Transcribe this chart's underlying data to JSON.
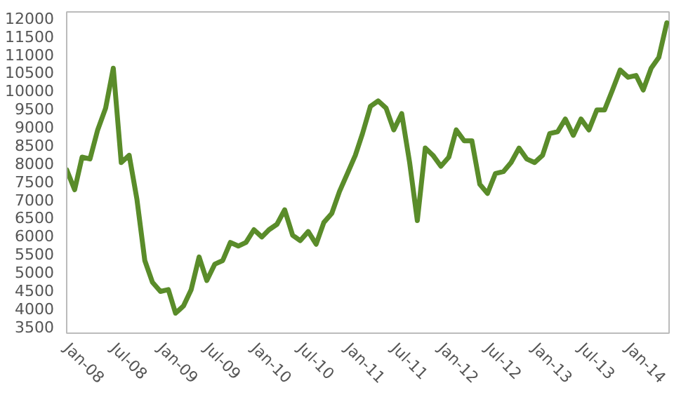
{
  "chart_data": {
    "type": "line",
    "x": [
      "2008-01",
      "2008-02",
      "2008-03",
      "2008-04",
      "2008-05",
      "2008-06",
      "2008-07",
      "2008-08",
      "2008-09",
      "2008-10",
      "2008-11",
      "2008-12",
      "2009-01",
      "2009-02",
      "2009-03",
      "2009-04",
      "2009-05",
      "2009-06",
      "2009-07",
      "2009-08",
      "2009-09",
      "2009-10",
      "2009-11",
      "2009-12",
      "2010-01",
      "2010-02",
      "2010-03",
      "2010-04",
      "2010-05",
      "2010-06",
      "2010-07",
      "2010-08",
      "2010-09",
      "2010-10",
      "2010-11",
      "2010-12",
      "2011-01",
      "2011-02",
      "2011-03",
      "2011-04",
      "2011-05",
      "2011-06",
      "2011-07",
      "2011-08",
      "2011-09",
      "2011-10",
      "2011-11",
      "2011-12",
      "2012-01",
      "2012-02",
      "2012-03",
      "2012-04",
      "2012-05",
      "2012-06",
      "2012-07",
      "2012-08",
      "2012-09",
      "2012-10",
      "2012-11",
      "2012-12",
      "2013-01",
      "2013-02",
      "2013-03",
      "2013-04",
      "2013-05",
      "2013-06",
      "2013-07",
      "2013-08",
      "2013-09",
      "2013-10",
      "2013-11",
      "2013-12",
      "2014-01",
      "2014-02",
      "2014-03",
      "2014-04",
      "2014-05",
      "2014-06"
    ],
    "series": [
      {
        "color": "#5a8c2a",
        "values": [
          7800,
          7250,
          8150,
          8100,
          8900,
          9500,
          10600,
          8000,
          8200,
          7000,
          5300,
          4700,
          4450,
          4500,
          3850,
          4050,
          4500,
          5400,
          4750,
          5200,
          5300,
          5800,
          5700,
          5800,
          6150,
          5950,
          6150,
          6300,
          6700,
          6000,
          5850,
          6100,
          5750,
          6350,
          6600,
          7200,
          7700,
          8200,
          8800,
          9550,
          9700,
          9500,
          8900,
          9350,
          8000,
          6400,
          8400,
          8200,
          7900,
          8150,
          8900,
          8600,
          8600,
          7400,
          7150,
          7700,
          7750,
          8000,
          8400,
          8100,
          8000,
          8200,
          8800,
          8850,
          9200,
          8750,
          9200,
          8900,
          9450,
          9450,
          10000,
          10550,
          10350,
          10400,
          10000,
          10600,
          10900,
          11850
        ]
      }
    ],
    "xlim": [
      "2008-01",
      "2014-06-10"
    ],
    "xticks": [
      {
        "value": "2008-01",
        "label": "Jan-08"
      },
      {
        "value": "2008-07",
        "label": "Jul-08"
      },
      {
        "value": "2009-01",
        "label": "Jan-09"
      },
      {
        "value": "2009-07",
        "label": "Jul-09"
      },
      {
        "value": "2010-01",
        "label": "Jan-10"
      },
      {
        "value": "2010-07",
        "label": "Jul-10"
      },
      {
        "value": "2011-01",
        "label": "Jan-11"
      },
      {
        "value": "2011-07",
        "label": "Jul-11"
      },
      {
        "value": "2012-01",
        "label": "Jan-12"
      },
      {
        "value": "2012-07",
        "label": "Jul-12"
      },
      {
        "value": "2013-01",
        "label": "Jan-13"
      },
      {
        "value": "2013-07",
        "label": "Jul-13"
      },
      {
        "value": "2014-01",
        "label": "Jan-14"
      }
    ],
    "ylim": [
      3300,
      12150
    ],
    "yticks": [
      3500,
      4000,
      4500,
      5000,
      5500,
      6000,
      6500,
      7000,
      7500,
      8000,
      8500,
      9000,
      9500,
      10000,
      10500,
      11000,
      11500,
      12000
    ],
    "grid": false,
    "line_style": "solid"
  }
}
